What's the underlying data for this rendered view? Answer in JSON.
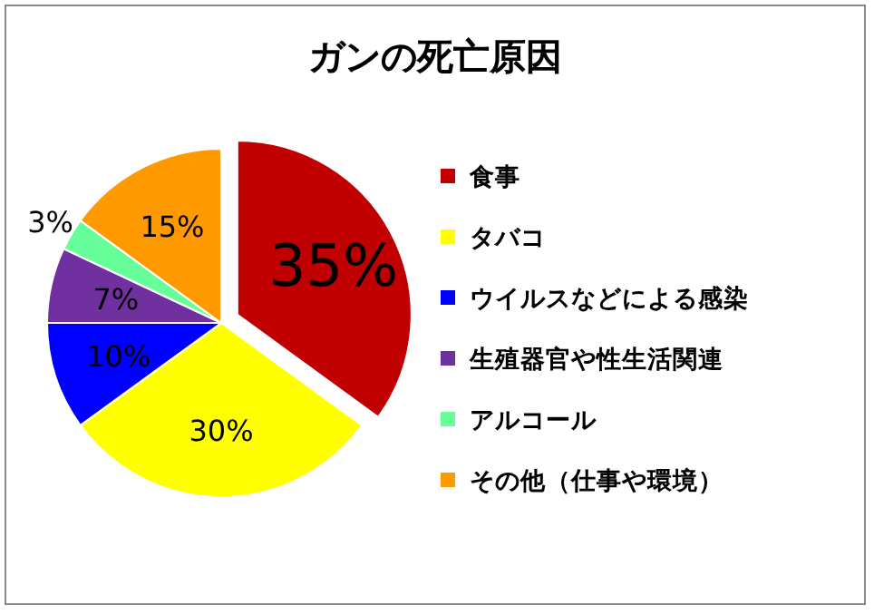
{
  "chart_data": {
    "type": "pie",
    "title": "ガンの死亡原因",
    "categories": [
      "食事",
      "タバコ",
      "ウイルスなどによる感染",
      "生殖器官や性生活関連",
      "アルコール",
      "その他（仕事や環境）"
    ],
    "values": [
      35,
      30,
      10,
      7,
      3,
      15
    ],
    "colors": [
      "#c00000",
      "#ffff00",
      "#0000ff",
      "#7030a0",
      "#66ff99",
      "#ff9900"
    ],
    "value_labels": [
      "35%",
      "30%",
      "10%",
      "7%",
      "3%",
      "15%"
    ],
    "legend": "right"
  }
}
